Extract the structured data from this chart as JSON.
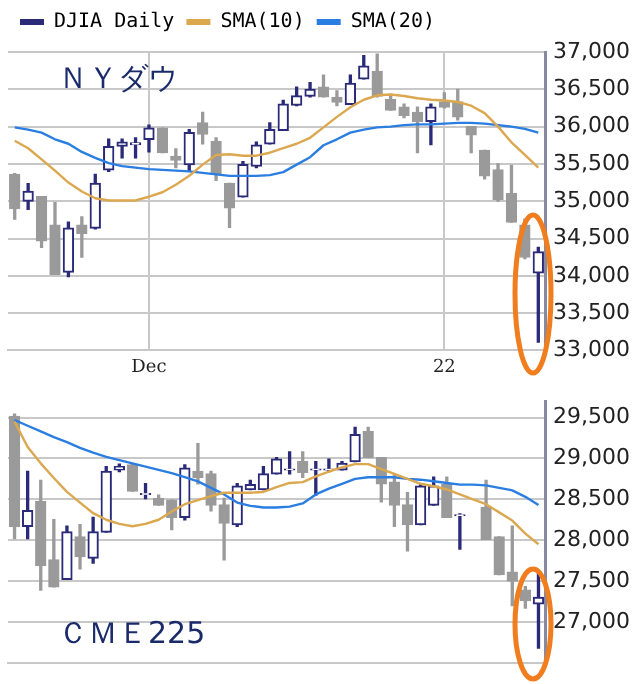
{
  "chart_data": [
    {
      "type": "candlestick",
      "title": "ＮＹダウ",
      "legend": "top",
      "grid": true,
      "categories": [
        null,
        null,
        null,
        null,
        null,
        null,
        null,
        null,
        null,
        null,
        "Dec",
        null,
        null,
        null,
        null,
        null,
        null,
        null,
        null,
        null,
        null,
        null,
        null,
        null,
        null,
        null,
        null,
        null,
        null,
        null,
        null,
        null,
        "22",
        null,
        null,
        null,
        null,
        null,
        null,
        null
      ],
      "ylim": [
        33000,
        37000
      ],
      "yticks": [
        {
          "value": 33000,
          "label": "33,000"
        },
        {
          "value": 33500,
          "label": "33,500"
        },
        {
          "value": 34000,
          "label": "34,000"
        },
        {
          "value": 34500,
          "label": "34,500"
        },
        {
          "value": 35000,
          "label": "35,000"
        },
        {
          "value": 35500,
          "label": "35,500"
        },
        {
          "value": 36000,
          "label": "36,000"
        },
        {
          "value": 36500,
          "label": "36,500"
        },
        {
          "value": 37000,
          "label": "37,000"
        }
      ],
      "series": [
        {
          "name": "DJIA Daily",
          "type": "candlestick",
          "color": "#2a2a78",
          "colors": [
            "#9a9a9a",
            "#2a2a78",
            "#9a9a9a",
            "#9a9a9a",
            "#2a2a78",
            "#9a9a9a",
            "#2a2a78",
            "#2a2a78",
            "#2a2a78",
            "#2a2a78",
            "#2a2a78",
            "#9a9a9a",
            "#9a9a9a",
            "#2a2a78",
            "#9a9a9a",
            "#9a9a9a",
            "#9a9a9a",
            "#2a2a78",
            "#2a2a78",
            "#2a2a78",
            "#2a2a78",
            "#2a2a78",
            "#2a2a78",
            "#9a9a9a",
            "#9a9a9a",
            "#2a2a78",
            "#2a2a78",
            "#9a9a9a",
            "#9a9a9a",
            "#9a9a9a",
            "#9a9a9a",
            "#2a2a78",
            "#9a9a9a",
            "#9a9a9a",
            "#9a9a9a",
            "#9a9a9a",
            "#9a9a9a",
            "#9a9a9a",
            "#9a9a9a",
            "#2a2a78"
          ],
          "ohlc": [
            [
              35360,
              35370,
              34760,
              34900
            ],
            [
              35000,
              35235,
              34890,
              35130
            ],
            [
              35060,
              35060,
              34380,
              34470
            ],
            [
              34680,
              34980,
              34020,
              34020
            ],
            [
              34050,
              34720,
              33990,
              34640
            ],
            [
              34680,
              34790,
              34250,
              34570
            ],
            [
              34640,
              35360,
              34630,
              35240
            ],
            [
              35420,
              35830,
              35400,
              35730
            ],
            [
              35740,
              35830,
              35580,
              35790
            ],
            [
              35760,
              35850,
              35580,
              35780
            ],
            [
              35830,
              36020,
              35660,
              35980
            ],
            [
              35980,
              35980,
              35650,
              35650
            ],
            [
              35600,
              35700,
              35450,
              35550
            ],
            [
              35490,
              35960,
              35410,
              35920
            ],
            [
              36050,
              36190,
              35770,
              35900
            ],
            [
              35800,
              35850,
              35280,
              35360
            ],
            [
              35240,
              35240,
              34650,
              34910
            ],
            [
              35060,
              35530,
              35060,
              35490
            ],
            [
              35470,
              35790,
              35450,
              35750
            ],
            [
              35770,
              36050,
              35770,
              35960
            ],
            [
              35950,
              36350,
              35950,
              36300
            ],
            [
              36290,
              36530,
              36280,
              36410
            ],
            [
              36410,
              36590,
              36400,
              36500
            ],
            [
              36530,
              36690,
              36400,
              36400
            ],
            [
              36390,
              36480,
              36280,
              36330
            ],
            [
              36300,
              36690,
              36300,
              36580
            ],
            [
              36640,
              36950,
              36640,
              36810
            ],
            [
              36740,
              36970,
              36400,
              36410
            ],
            [
              36360,
              36430,
              36220,
              36220
            ],
            [
              36260,
              36300,
              36120,
              36150
            ],
            [
              36190,
              36260,
              35650,
              36070
            ],
            [
              36070,
              36300,
              35760,
              36260
            ],
            [
              36330,
              36450,
              36250,
              36260
            ],
            [
              36330,
              36500,
              36090,
              36130
            ],
            [
              36000,
              36000,
              35650,
              35890
            ],
            [
              35680,
              35680,
              35300,
              35340
            ],
            [
              35420,
              35500,
              35000,
              35020
            ],
            [
              35100,
              35480,
              34720,
              34720
            ],
            [
              34680,
              34760,
              34230,
              34250
            ],
            [
              34040,
              34380,
              33110,
              34320
            ]
          ]
        },
        {
          "name": "SMA(10)",
          "type": "line",
          "color": "#dba850",
          "values": [
            35810,
            35710,
            35560,
            35410,
            35250,
            35130,
            35040,
            35010,
            35010,
            35010,
            35060,
            35120,
            35220,
            35340,
            35490,
            35620,
            35630,
            35610,
            35610,
            35650,
            35710,
            35770,
            35850,
            35990,
            36130,
            36260,
            36360,
            36420,
            36430,
            36410,
            36380,
            36360,
            36350,
            36330,
            36280,
            36180,
            36000,
            35790,
            35620,
            35450
          ]
        },
        {
          "name": "SMA(20)",
          "type": "line",
          "color": "#2a7de1",
          "values": [
            35990,
            35960,
            35920,
            35830,
            35770,
            35660,
            35580,
            35510,
            35470,
            35450,
            35430,
            35420,
            35410,
            35400,
            35380,
            35360,
            35340,
            35340,
            35340,
            35350,
            35390,
            35490,
            35590,
            35750,
            35830,
            35920,
            35960,
            35990,
            36000,
            36020,
            36030,
            36030,
            36040,
            36050,
            36050,
            36040,
            36020,
            36000,
            35970,
            35920
          ]
        }
      ]
    },
    {
      "type": "candlestick",
      "title": "ＣＭＥ225",
      "grid": "y",
      "tick_labels": "y",
      "categories": [
        null,
        null,
        null,
        null,
        null,
        null,
        null,
        null,
        null,
        null,
        null,
        null,
        null,
        null,
        null,
        null,
        null,
        null,
        null,
        null,
        null,
        null,
        null,
        null,
        null,
        null,
        null,
        null,
        null,
        null,
        null,
        null,
        null,
        null,
        null,
        null,
        null,
        null,
        null,
        null,
        null
      ],
      "ylim": [
        26500,
        29700
      ],
      "yticks": [
        {
          "value": 27000,
          "label": "27,000"
        },
        {
          "value": 27500,
          "label": "27,500"
        },
        {
          "value": 28000,
          "label": "28,000"
        },
        {
          "value": 28500,
          "label": "28,500"
        },
        {
          "value": 29000,
          "label": "29,000"
        },
        {
          "value": 29500,
          "label": "29,500"
        }
      ],
      "series": [
        {
          "type": "candlestick",
          "color": "#2a2a78",
          "colors": [
            "#9a9a9a",
            "#2a2a78",
            "#9a9a9a",
            "#9a9a9a",
            "#2a2a78",
            "#9a9a9a",
            "#2a2a78",
            "#2a2a78",
            "#2a2a78",
            "#9a9a9a",
            "#2a2a78",
            "#9a9a9a",
            "#9a9a9a",
            "#2a2a78",
            "#9a9a9a",
            "#9a9a9a",
            "#9a9a9a",
            "#2a2a78",
            "#2a2a78",
            "#2a2a78",
            "#2a2a78",
            "#2a2a78",
            "#9a9a9a",
            "#2a2a78",
            "#2a2a78",
            "#2a2a78",
            "#2a2a78",
            "#9a9a9a",
            "#9a9a9a",
            "#9a9a9a",
            "#9a9a9a",
            "#2a2a78",
            "#2a2a78",
            "#9a9a9a",
            "#2a2a78",
            null,
            "#9a9a9a",
            "#9a9a9a",
            "#9a9a9a",
            "#9a9a9a",
            "#2a2a78"
          ],
          "ohlc": [
            [
              29515,
              29540,
              28020,
              28170
            ],
            [
              28170,
              28840,
              28020,
              28360
            ],
            [
              28470,
              28730,
              27390,
              27690
            ],
            [
              27760,
              28250,
              27430,
              27430
            ],
            [
              27520,
              28170,
              27520,
              28100
            ],
            [
              28040,
              28190,
              27650,
              27800
            ],
            [
              27780,
              28280,
              27720,
              28100
            ],
            [
              28100,
              28900,
              28100,
              28840
            ],
            [
              28860,
              28930,
              28840,
              28900
            ],
            [
              28920,
              28930,
              28600,
              28600
            ],
            [
              28560,
              28690,
              28510,
              28570
            ],
            [
              28510,
              28550,
              28430,
              28430
            ],
            [
              28490,
              28490,
              28130,
              28280
            ],
            [
              28280,
              28920,
              28250,
              28880
            ],
            [
              28840,
              29180,
              28690,
              28770
            ],
            [
              28810,
              28840,
              28360,
              28430
            ],
            [
              28430,
              28510,
              27760,
              28210
            ],
            [
              28190,
              28690,
              28170,
              28660
            ],
            [
              28620,
              28730,
              28620,
              28680
            ],
            [
              28620,
              28900,
              28620,
              28810
            ],
            [
              28810,
              29010,
              28810,
              28990
            ],
            [
              28860,
              29080,
              28810,
              28870
            ],
            [
              28960,
              29080,
              28770,
              28830
            ],
            [
              28860,
              28960,
              28550,
              28870
            ],
            [
              28860,
              28990,
              28840,
              28870
            ],
            [
              28860,
              28960,
              28860,
              28940
            ],
            [
              28960,
              29380,
              28960,
              29290
            ],
            [
              29330,
              29380,
              29010,
              29010
            ],
            [
              29010,
              29010,
              28470,
              28690
            ],
            [
              28710,
              28810,
              28170,
              28430
            ],
            [
              28430,
              28580,
              27870,
              28190
            ],
            [
              28190,
              28690,
              28190,
              28660
            ],
            [
              28430,
              28770,
              28430,
              28660
            ],
            [
              28680,
              28770,
              28280,
              28280
            ],
            [
              28300,
              28320,
              27890,
              28310
            ],
            null,
            [
              28400,
              28730,
              28010,
              28010
            ],
            [
              28040,
              28040,
              27580,
              27580
            ],
            [
              27610,
              28170,
              27200,
              27500
            ],
            [
              27390,
              27430,
              27170,
              27260
            ],
            [
              27220,
              27610,
              26680,
              27300
            ]
          ]
        },
        {
          "type": "line",
          "color": "#dba850",
          "values": [
            29450,
            29140,
            28940,
            28760,
            28590,
            28460,
            28330,
            28250,
            28200,
            28170,
            28200,
            28250,
            28350,
            28440,
            28490,
            28540,
            28580,
            28580,
            28580,
            28590,
            28650,
            28700,
            28710,
            28780,
            28840,
            28890,
            28930,
            28930,
            28870,
            28810,
            28750,
            28690,
            28660,
            28620,
            28560,
            28500,
            28440,
            28340,
            28240,
            28080,
            27950
          ]
        },
        {
          "type": "line",
          "color": "#2a7de1",
          "values": [
            29470,
            29400,
            29330,
            29260,
            29200,
            29130,
            29070,
            29020,
            28980,
            28940,
            28900,
            28860,
            28820,
            28770,
            28720,
            28640,
            28560,
            28460,
            28420,
            28400,
            28400,
            28410,
            28450,
            28560,
            28630,
            28690,
            28750,
            28770,
            28770,
            28770,
            28750,
            28740,
            28720,
            28700,
            28680,
            28680,
            28670,
            28640,
            28610,
            28530,
            28430
          ]
        }
      ]
    }
  ]
}
